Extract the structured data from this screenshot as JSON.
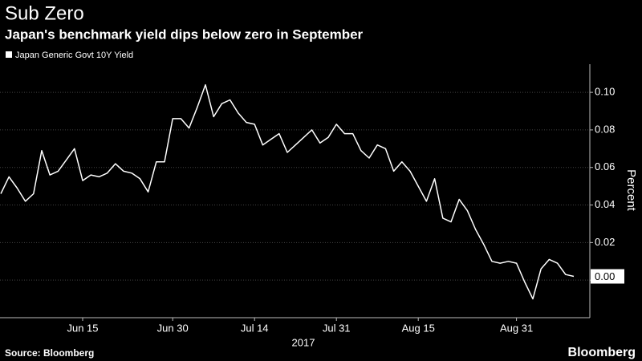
{
  "chart_data": {
    "type": "line",
    "title": "Sub Zero",
    "subtitle": "Japan's benchmark yield dips below zero in September",
    "x_label": "2017",
    "y_label": "Percent",
    "source": "Source: Bloomberg",
    "brand": "Bloomberg",
    "categories": [
      null,
      null,
      null,
      null,
      null,
      null,
      null,
      null,
      null,
      null,
      "Jun 15",
      null,
      null,
      null,
      null,
      null,
      null,
      null,
      null,
      null,
      null,
      "Jun 30",
      null,
      null,
      null,
      null,
      null,
      null,
      null,
      null,
      null,
      "Jul 14",
      null,
      null,
      null,
      null,
      null,
      null,
      null,
      null,
      null,
      "Jul 31",
      null,
      null,
      null,
      null,
      null,
      null,
      null,
      null,
      null,
      "Aug 15",
      null,
      null,
      null,
      null,
      null,
      null,
      null,
      null,
      null,
      null,
      null,
      "Aug 31",
      null,
      null,
      null,
      null,
      null,
      null,
      null
    ],
    "series": [
      {
        "name": "Japan Generic Govt 10Y Yield",
        "color": "#ffffff",
        "values": [
          0.046,
          0.055,
          0.049,
          0.042,
          0.046,
          0.069,
          0.056,
          0.058,
          0.064,
          0.07,
          0.053,
          0.056,
          0.055,
          0.057,
          0.062,
          0.058,
          0.057,
          0.054,
          0.047,
          0.063,
          0.063,
          0.086,
          0.086,
          0.081,
          0.092,
          0.104,
          0.087,
          0.094,
          0.096,
          0.089,
          0.084,
          0.083,
          0.072,
          0.075,
          0.078,
          0.068,
          0.072,
          0.076,
          0.08,
          0.073,
          0.076,
          0.083,
          0.078,
          0.078,
          0.069,
          0.065,
          0.072,
          0.07,
          0.058,
          0.063,
          0.058,
          0.05,
          0.042,
          0.054,
          0.033,
          0.031,
          0.043,
          0.037,
          0.027,
          0.019,
          0.01,
          0.009,
          0.01,
          0.009,
          -0.001,
          -0.01,
          0.006,
          0.011,
          0.009,
          0.003,
          0.002
        ],
        "value_labels": [
          null,
          null,
          null,
          null,
          null,
          null,
          null,
          null,
          null,
          null,
          null,
          null,
          null,
          null,
          null,
          null,
          null,
          null,
          null,
          null,
          null,
          null,
          null,
          null,
          null,
          null,
          null,
          null,
          null,
          null,
          null,
          null,
          null,
          null,
          null,
          null,
          null,
          null,
          null,
          null,
          null,
          null,
          null,
          null,
          null,
          null,
          null,
          null,
          null,
          null,
          null,
          null,
          null,
          null,
          null,
          null,
          null,
          null,
          null,
          null,
          null,
          null,
          null,
          null,
          null,
          null,
          null,
          null,
          null,
          null,
          "0.00"
        ]
      }
    ],
    "ylim": [
      -0.02,
      0.115
    ],
    "yticks": [
      {
        "value": 0,
        "label": "0.00"
      },
      {
        "value": 0.02,
        "label": "0.02"
      },
      {
        "value": 0.04,
        "label": "0.04"
      },
      {
        "value": 0.06,
        "label": "0.06"
      },
      {
        "value": 0.08,
        "label": "0.08"
      },
      {
        "value": 0.1,
        "label": "0.10"
      }
    ],
    "grid": true,
    "legend": "top-left"
  }
}
